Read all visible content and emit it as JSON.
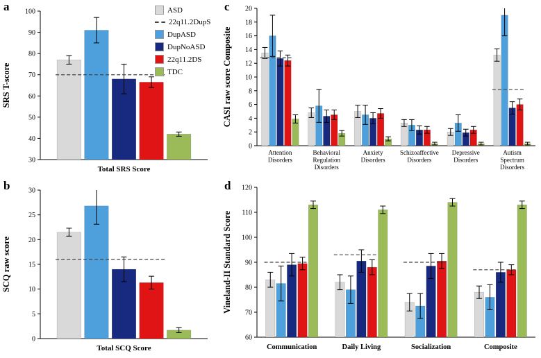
{
  "panel_letters": [
    "a",
    "b",
    "c",
    "d"
  ],
  "colors": {
    "asd_gray": "#d9d9d9",
    "dupasd_blue": "#4da0dc",
    "dupnoasd_navy": "#182a80",
    "dq22_red": "#e01414",
    "tdc_green": "#9bbb59",
    "reference_dash": "#444444"
  },
  "legend": {
    "items": [
      {
        "label": "ASD",
        "swatch": "box",
        "color": "#d9d9d9"
      },
      {
        "label": "22q11.2DupS",
        "swatch": "dashed-line",
        "color": "#444444"
      },
      {
        "label": "DupASD",
        "swatch": "box",
        "color": "#4da0dc"
      },
      {
        "label": "DupNoASD",
        "swatch": "box",
        "color": "#182a80"
      },
      {
        "label": "22q11.2DS",
        "swatch": "box",
        "color": "#e01414"
      },
      {
        "label": "TDC",
        "swatch": "box",
        "color": "#9bbb59"
      }
    ]
  },
  "chart_data": [
    {
      "panel": "a",
      "type": "bar",
      "ylabel": "SRS T-score",
      "ylim": [
        30,
        100
      ],
      "yticks": [
        30,
        40,
        50,
        60,
        70,
        80,
        90,
        100
      ],
      "categories": [
        "Total SRS Score"
      ],
      "series": [
        {
          "name": "ASD",
          "color": "#d9d9d9",
          "values": [
            77
          ],
          "errors": [
            2
          ]
        },
        {
          "name": "DupASD",
          "color": "#4da0dc",
          "values": [
            91
          ],
          "errors": [
            6
          ]
        },
        {
          "name": "DupNoASD",
          "color": "#182a80",
          "values": [
            68
          ],
          "errors": [
            7
          ]
        },
        {
          "name": "22q11.2DS",
          "color": "#e01414",
          "values": [
            66.5
          ],
          "errors": [
            2.5
          ]
        },
        {
          "name": "TDC",
          "color": "#9bbb59",
          "values": [
            42
          ],
          "errors": [
            1
          ]
        }
      ],
      "group_reference_lines": [
        {
          "category_index": 0,
          "value": 70,
          "label": "22q11.2DupS"
        }
      ]
    },
    {
      "panel": "b",
      "type": "bar",
      "ylabel": "SCQ raw score",
      "ylim": [
        0,
        30
      ],
      "yticks": [
        0,
        5,
        10,
        15,
        20,
        25,
        30
      ],
      "categories": [
        "Total SCQ Score"
      ],
      "series": [
        {
          "name": "ASD",
          "color": "#d9d9d9",
          "values": [
            21.5
          ],
          "errors": [
            0.8
          ]
        },
        {
          "name": "DupASD",
          "color": "#4da0dc",
          "values": [
            26.8
          ],
          "errors": [
            3.7
          ]
        },
        {
          "name": "DupNoASD",
          "color": "#182a80",
          "values": [
            14
          ],
          "errors": [
            2.5
          ]
        },
        {
          "name": "22q11.2DS",
          "color": "#e01414",
          "values": [
            11.3
          ],
          "errors": [
            1.3
          ]
        },
        {
          "name": "TDC",
          "color": "#9bbb59",
          "values": [
            1.7
          ],
          "errors": [
            0.5
          ]
        }
      ],
      "group_reference_lines": [
        {
          "category_index": 0,
          "value": 16,
          "label": "22q11.2DupS"
        }
      ]
    },
    {
      "panel": "c",
      "type": "bar",
      "ylabel": "CASI raw score Composite",
      "ylim": [
        0,
        20
      ],
      "yticks": [
        0,
        2,
        4,
        6,
        8,
        10,
        12,
        14,
        16,
        18,
        20
      ],
      "categories": [
        "Attention Disorders",
        "Behavioral Regulation Disorders",
        "Anxiety Disorders",
        "Schizoaffective Disorders",
        "Depressive Disorders",
        "Autism Spectrum Disorders"
      ],
      "series": [
        {
          "name": "ASD",
          "color": "#d9d9d9",
          "values": [
            13.5,
            4.8,
            5.0,
            3.3,
            2.0,
            13.2
          ],
          "errors": [
            0.8,
            0.7,
            0.9,
            0.5,
            0.5,
            0.9
          ]
        },
        {
          "name": "DupASD",
          "color": "#4da0dc",
          "values": [
            16,
            5.8,
            4.5,
            3.0,
            3.3,
            19
          ],
          "errors": [
            3,
            2.4,
            1.4,
            0.8,
            1.2,
            3
          ]
        },
        {
          "name": "DupNoASD",
          "color": "#182a80",
          "values": [
            12.7,
            4.3,
            4.0,
            2.3,
            1.9,
            5.5
          ],
          "errors": [
            1.1,
            0.9,
            0.8,
            0.6,
            0.5,
            0.9
          ]
        },
        {
          "name": "22q11.2DS",
          "color": "#e01414",
          "values": [
            12.4,
            4.5,
            4.7,
            2.3,
            2.3,
            6.0
          ],
          "errors": [
            0.8,
            0.7,
            0.7,
            0.5,
            0.5,
            0.8
          ]
        },
        {
          "name": "TDC",
          "color": "#9bbb59",
          "values": [
            3.9,
            1.8,
            1.0,
            0.3,
            0.3,
            0.3
          ],
          "errors": [
            0.6,
            0.4,
            0.3,
            0.2,
            0.2,
            0.2
          ]
        }
      ],
      "group_reference_lines": [
        {
          "category_index": 0,
          "value": 12.8,
          "label": "22q11.2DupS"
        },
        {
          "category_index": 5,
          "value": 8.2,
          "label": "22q11.2DupS"
        }
      ]
    },
    {
      "panel": "d",
      "type": "bar",
      "ylabel": "Vineland-II Standard Score",
      "ylim": [
        60,
        120
      ],
      "yticks": [
        60,
        70,
        80,
        90,
        100,
        110,
        120
      ],
      "categories": [
        "Communication",
        "Daily Living",
        "Socialization",
        "Composite"
      ],
      "series": [
        {
          "name": "ASD",
          "color": "#d9d9d9",
          "values": [
            83,
            82,
            74,
            78
          ],
          "errors": [
            3,
            3,
            3.5,
            2.5
          ]
        },
        {
          "name": "DupASD",
          "color": "#4da0dc",
          "values": [
            81.5,
            79,
            72.5,
            76
          ],
          "errors": [
            7,
            5.5,
            5,
            5
          ]
        },
        {
          "name": "DupNoASD",
          "color": "#182a80",
          "values": [
            89,
            90.5,
            88.5,
            86
          ],
          "errors": [
            4.5,
            4.5,
            5,
            4
          ]
        },
        {
          "name": "22q11.2DS",
          "color": "#e01414",
          "values": [
            89.5,
            88,
            90.5,
            87
          ],
          "errors": [
            2.5,
            3,
            3,
            2
          ]
        },
        {
          "name": "TDC",
          "color": "#9bbb59",
          "values": [
            113,
            111,
            114,
            113
          ],
          "errors": [
            1.5,
            1.5,
            1.5,
            1.5
          ]
        }
      ],
      "group_reference_lines": [
        {
          "category_index": 0,
          "value": 90,
          "label": "22q11.2DupS"
        },
        {
          "category_index": 1,
          "value": 93,
          "label": "22q11.2DupS"
        },
        {
          "category_index": 2,
          "value": 90,
          "label": "22q11.2DupS"
        },
        {
          "category_index": 3,
          "value": 87,
          "label": "22q11.2DupS"
        }
      ]
    }
  ]
}
